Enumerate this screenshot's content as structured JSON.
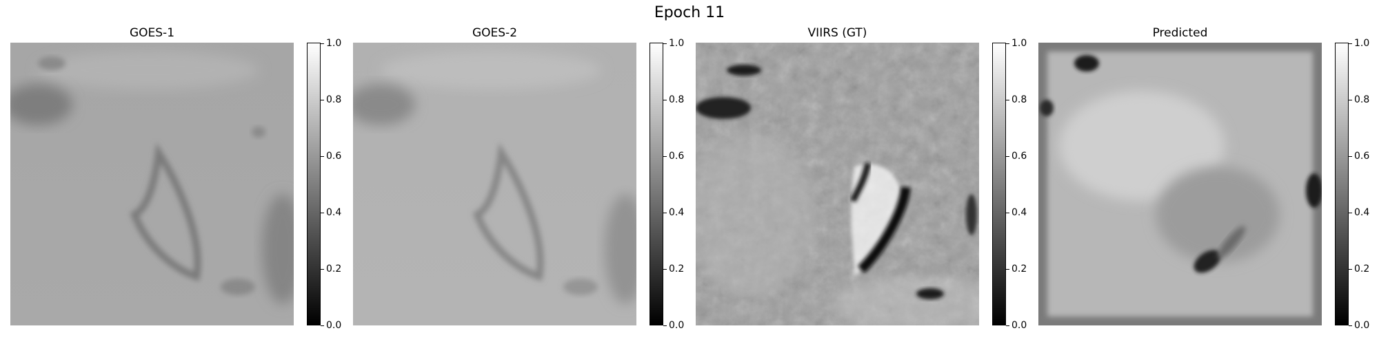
{
  "suptitle": "Epoch 11",
  "panels": [
    {
      "title": "GOES-1"
    },
    {
      "title": "GOES-2"
    },
    {
      "title": "VIIRS (GT)"
    },
    {
      "title": "Predicted"
    }
  ],
  "colorbar": {
    "min": 0.0,
    "max": 1.0,
    "ticks": [
      "0.0",
      "0.2",
      "0.4",
      "0.6",
      "0.8",
      "1.0"
    ],
    "colormap": "gray"
  }
}
